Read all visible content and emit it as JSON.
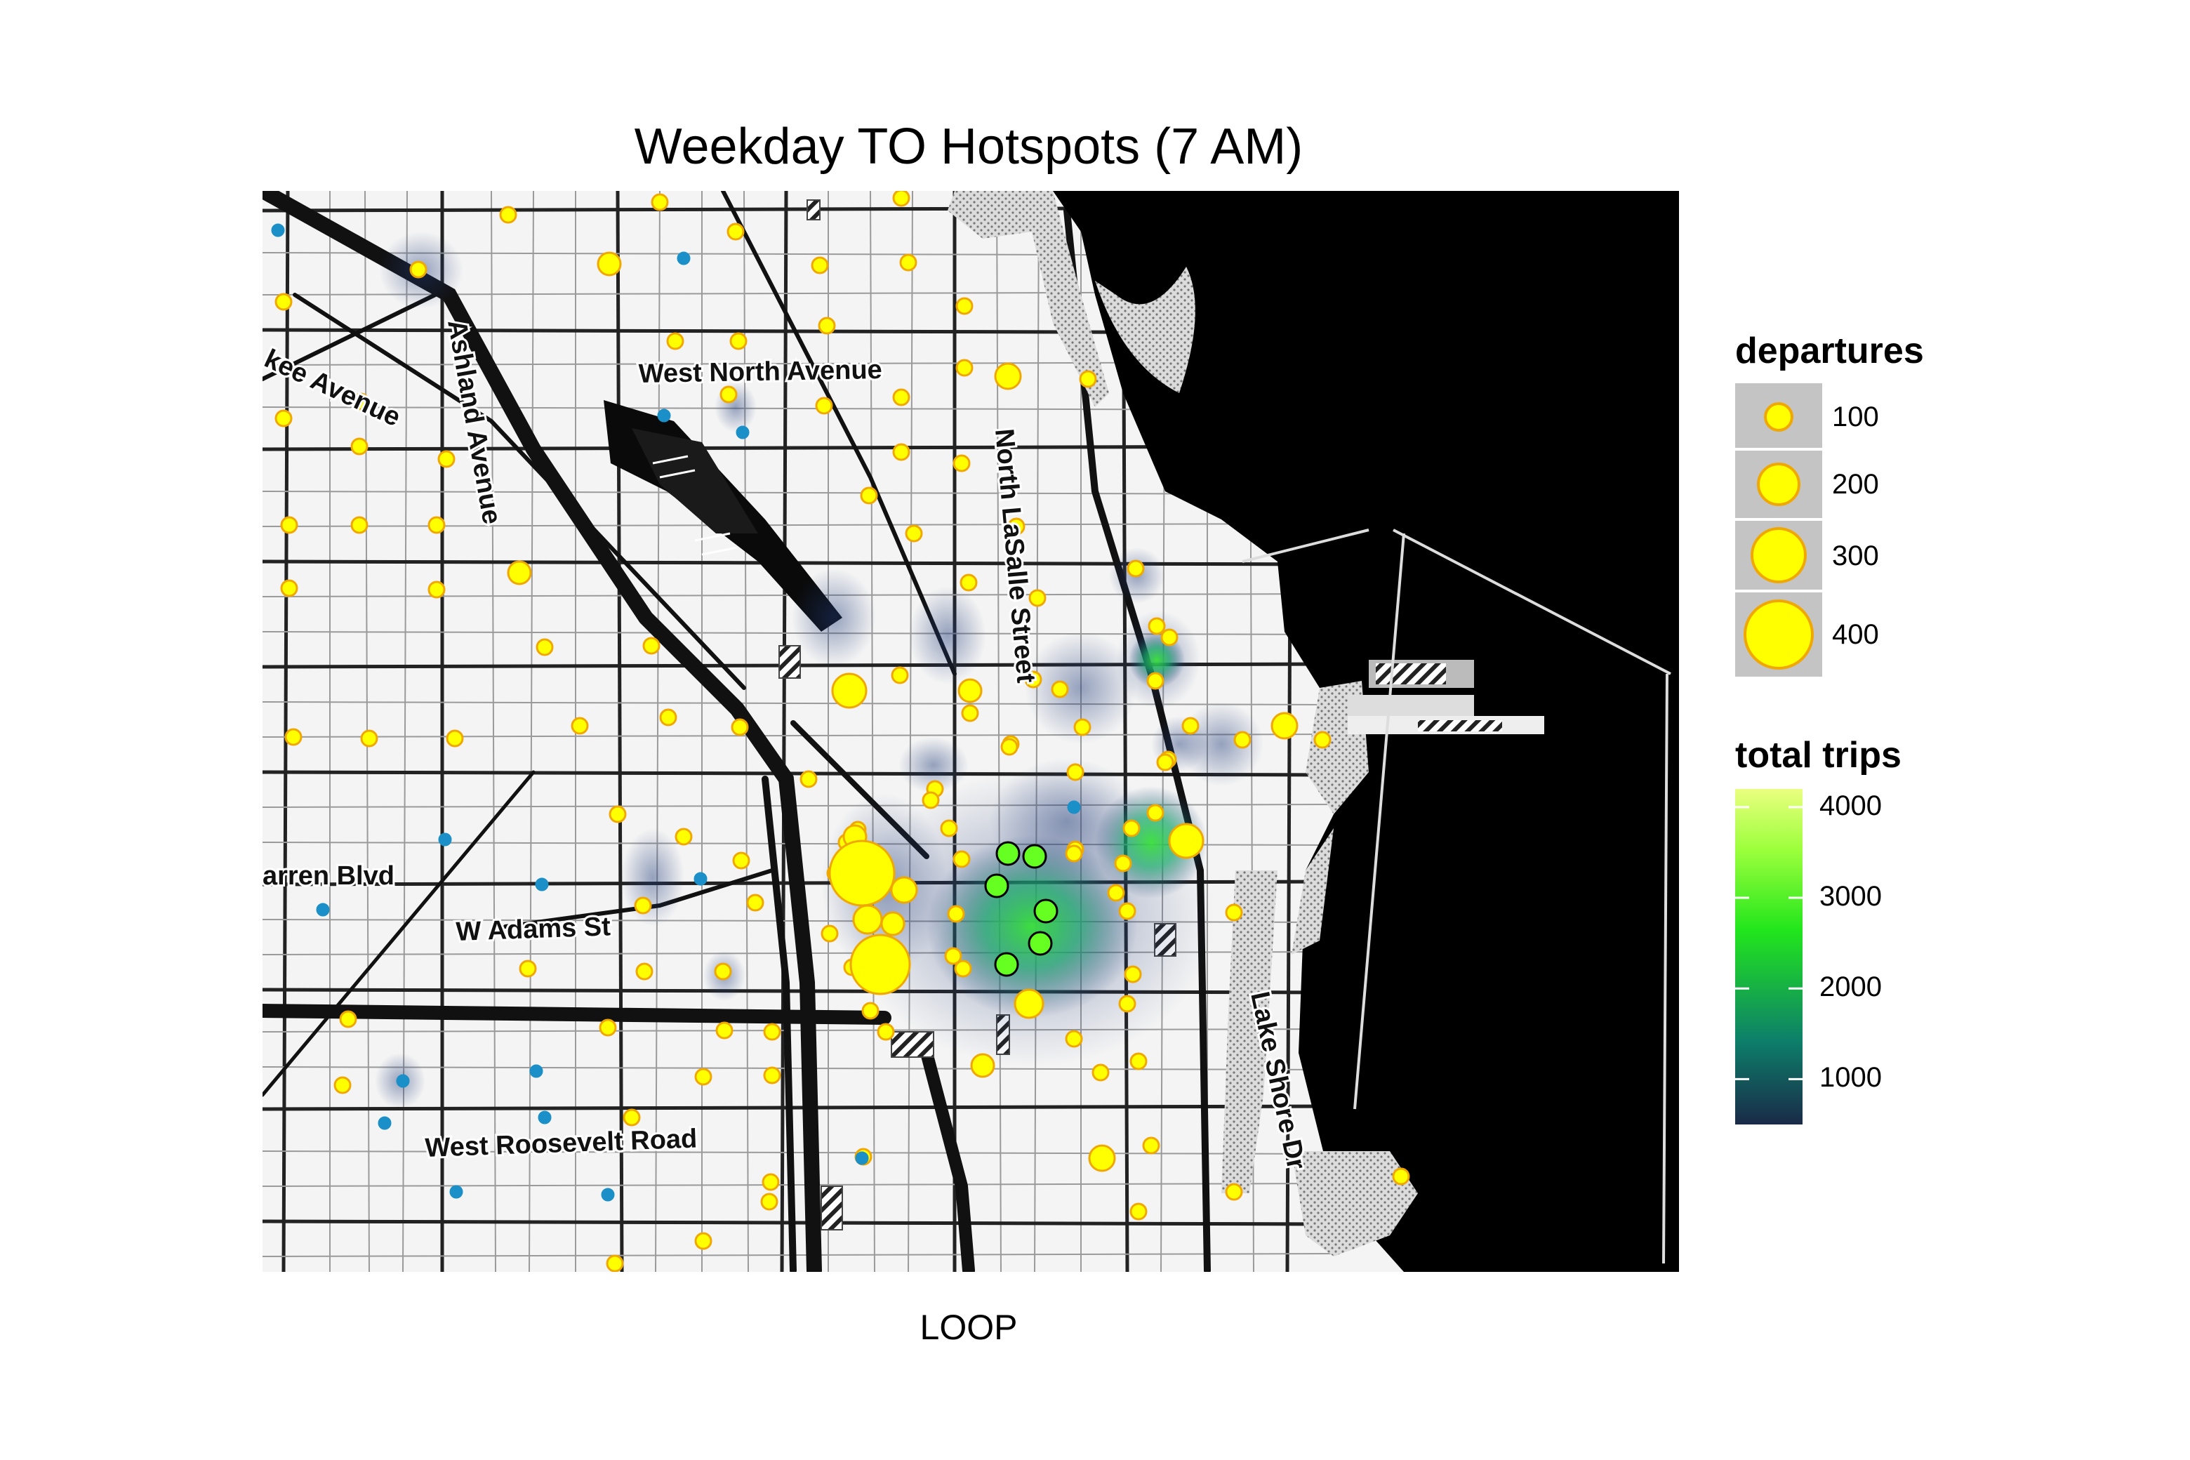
{
  "title": "Weekday TO Hotspots (7 AM)",
  "panel_label": "LOOP",
  "map": {
    "street_labels": [
      "West North Avenue",
      "Ashland Avenue",
      "kee Avenue",
      "North LaSalle Street",
      "arren Blvd",
      "W Adams St",
      "West Roosevelt Road",
      "Lake Shore Dr"
    ]
  },
  "legend": {
    "size": {
      "title": "departures",
      "levels": [
        {
          "label": "100",
          "value": 100
        },
        {
          "label": "200",
          "value": 200
        },
        {
          "label": "300",
          "value": 300
        },
        {
          "label": "400",
          "value": 400
        }
      ]
    },
    "color": {
      "title": "total trips",
      "ticks": [
        {
          "label": "4000",
          "value": 4000
        },
        {
          "label": "3000",
          "value": 3000
        },
        {
          "label": "2000",
          "value": 2000
        },
        {
          "label": "1000",
          "value": 1000
        }
      ],
      "range": [
        500,
        4200
      ],
      "gradient": [
        "#1a2a48",
        "#0d7f6a",
        "#22e61c",
        "#9dff3c",
        "#eaff80"
      ]
    }
  },
  "colors": {
    "point_fill": "#ffff00",
    "point_stroke": "#f0a800",
    "hot_point_fill": "#66ff22",
    "small_station": "#1a8fc8",
    "density": "#1f3a78",
    "lake": "#000000"
  }
}
